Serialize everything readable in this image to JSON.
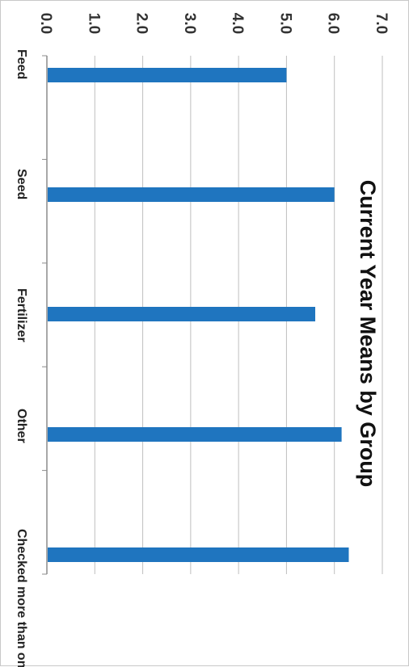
{
  "chart_data": {
    "type": "bar",
    "title": "Current Year Means by Group",
    "categories": [
      "Feed",
      "Seed",
      "Fertilizer",
      "Other",
      "Checked more than one"
    ],
    "values": [
      5.0,
      6.0,
      5.6,
      6.15,
      6.3
    ],
    "ylim": [
      0,
      7
    ],
    "yticks": [
      "0.0",
      "1.0",
      "2.0",
      "3.0",
      "4.0",
      "5.0",
      "6.0",
      "7.0"
    ],
    "xlabel": "",
    "ylabel": "",
    "grid": true,
    "legend": "none",
    "orientation": "rotated-90-clockwise",
    "colors": {
      "bar": "#1f75bf",
      "grid": "#bfbfbf",
      "axis": "#8c8c8c"
    }
  }
}
